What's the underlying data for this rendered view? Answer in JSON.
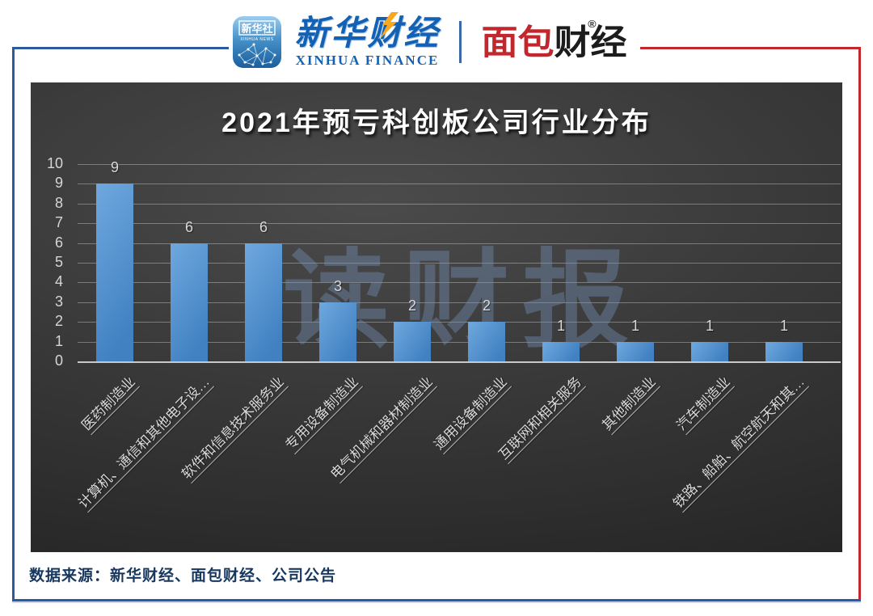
{
  "header": {
    "xinhua_news_icon": {
      "cn": "新华社",
      "en": "XINHUA NEWS"
    },
    "xinhua_finance": {
      "cn": "新华财经",
      "en": "XINHUA FINANCE"
    },
    "mianbao_caijing": {
      "part1": "面包",
      "part2": "财经",
      "reg": "®"
    }
  },
  "chart_data": {
    "type": "bar",
    "title": "2021年预亏科创板公司行业分布",
    "categories": [
      "医药制造业",
      "计算机、通信和其他电子设…",
      "软件和信息技术服务业",
      "专用设备制造业",
      "电气机械和器材制造业",
      "通用设备制造业",
      "互联网和相关服务",
      "其他制造业",
      "汽车制造业",
      "铁路、船舶、航空航天和其…"
    ],
    "values": [
      9,
      6,
      6,
      3,
      2,
      2,
      1,
      1,
      1,
      1
    ],
    "xlabel": "",
    "ylabel": "",
    "ylim": [
      0,
      10
    ],
    "ytick_step": 1,
    "grid": true,
    "legend": false,
    "watermark": "读财报",
    "bar_color_light": "#6fa8de",
    "bar_color_dark": "#4181c2",
    "label_color": "#d9d9d9"
  },
  "footer": {
    "source": "数据来源：新华财经、面包财经、公司公告"
  },
  "colors": {
    "frame_blue": "#2c5aa0",
    "frame_red": "#c1272d",
    "logo_blue": "#1261b4",
    "logo_red": "#c1272d",
    "source_navy": "#17375e",
    "panel_dark": "#3a3a3a"
  }
}
